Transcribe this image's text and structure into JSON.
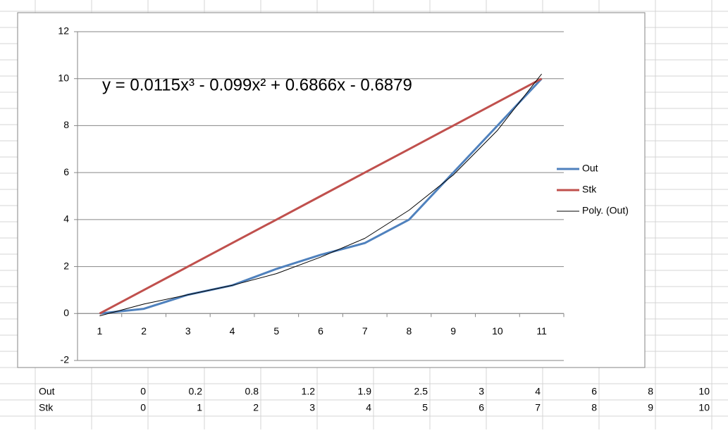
{
  "chart_data": {
    "type": "line",
    "annotation": "y = 0.0115x³ - 0.099x² + 0.6866x - 0.6879",
    "categories": [
      "1",
      "2",
      "3",
      "4",
      "5",
      "6",
      "7",
      "8",
      "9",
      "10",
      "11"
    ],
    "series": [
      {
        "name": "Out",
        "color": "#4f81bd",
        "width": 3,
        "values": [
          0,
          0.2,
          0.8,
          1.2,
          1.9,
          2.5,
          3,
          4,
          6,
          8,
          10
        ]
      },
      {
        "name": "Stk",
        "color": "#c0504d",
        "width": 3,
        "values": [
          0,
          1,
          2,
          3,
          4,
          5,
          6,
          7,
          8,
          9,
          10
        ]
      },
      {
        "name": "Poly. (Out)",
        "color": "#000000",
        "width": 1,
        "values": [
          -0.1,
          0.4,
          0.8,
          1.2,
          1.7,
          2.4,
          3.2,
          4.4,
          5.9,
          7.8,
          10.2
        ]
      }
    ],
    "ylim": [
      -2,
      12
    ],
    "yticks": [
      -2,
      0,
      2,
      4,
      6,
      8,
      10,
      12
    ],
    "grid": true,
    "legend": "right"
  }
}
